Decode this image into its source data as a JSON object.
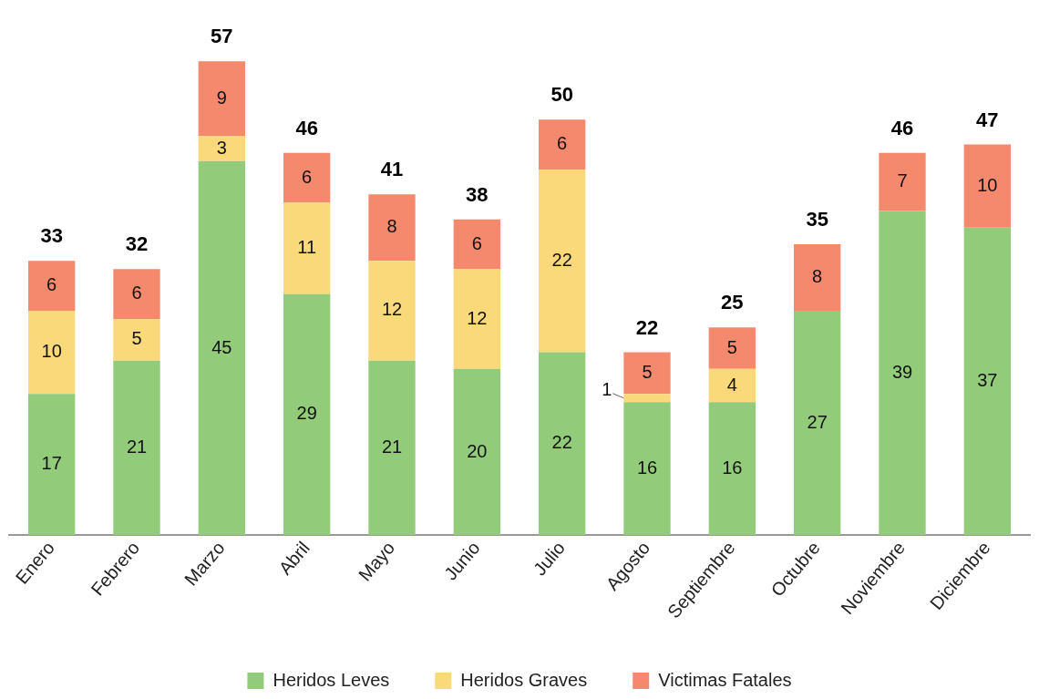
{
  "chart_data": {
    "type": "bar",
    "stacked": true,
    "categories": [
      "Enero",
      "Febrero",
      "Marzo",
      "Abril",
      "Mayo",
      "Junio",
      "Julio",
      "Agosto",
      "Septiembre",
      "Octubre",
      "Noviembre",
      "Diciembre"
    ],
    "series": [
      {
        "name": "Heridos Leves",
        "color": "#92cc7a",
        "values": [
          17,
          21,
          45,
          29,
          21,
          20,
          22,
          16,
          16,
          27,
          39,
          37
        ]
      },
      {
        "name": "Heridos Graves",
        "color": "#fad97a",
        "values": [
          10,
          5,
          3,
          11,
          12,
          12,
          22,
          1,
          4,
          null,
          null,
          null
        ]
      },
      {
        "name": "Victimas Fatales",
        "color": "#f4896e",
        "values": [
          6,
          6,
          9,
          6,
          8,
          6,
          6,
          5,
          5,
          8,
          7,
          10
        ]
      }
    ],
    "totals": [
      "33",
      "32",
      "57",
      "46",
      "41",
      "38",
      "50",
      "22",
      "25",
      "35",
      "46",
      "47"
    ],
    "data_labels": true,
    "tick_labels": "x",
    "grid": false,
    "legend": "bottom"
  }
}
